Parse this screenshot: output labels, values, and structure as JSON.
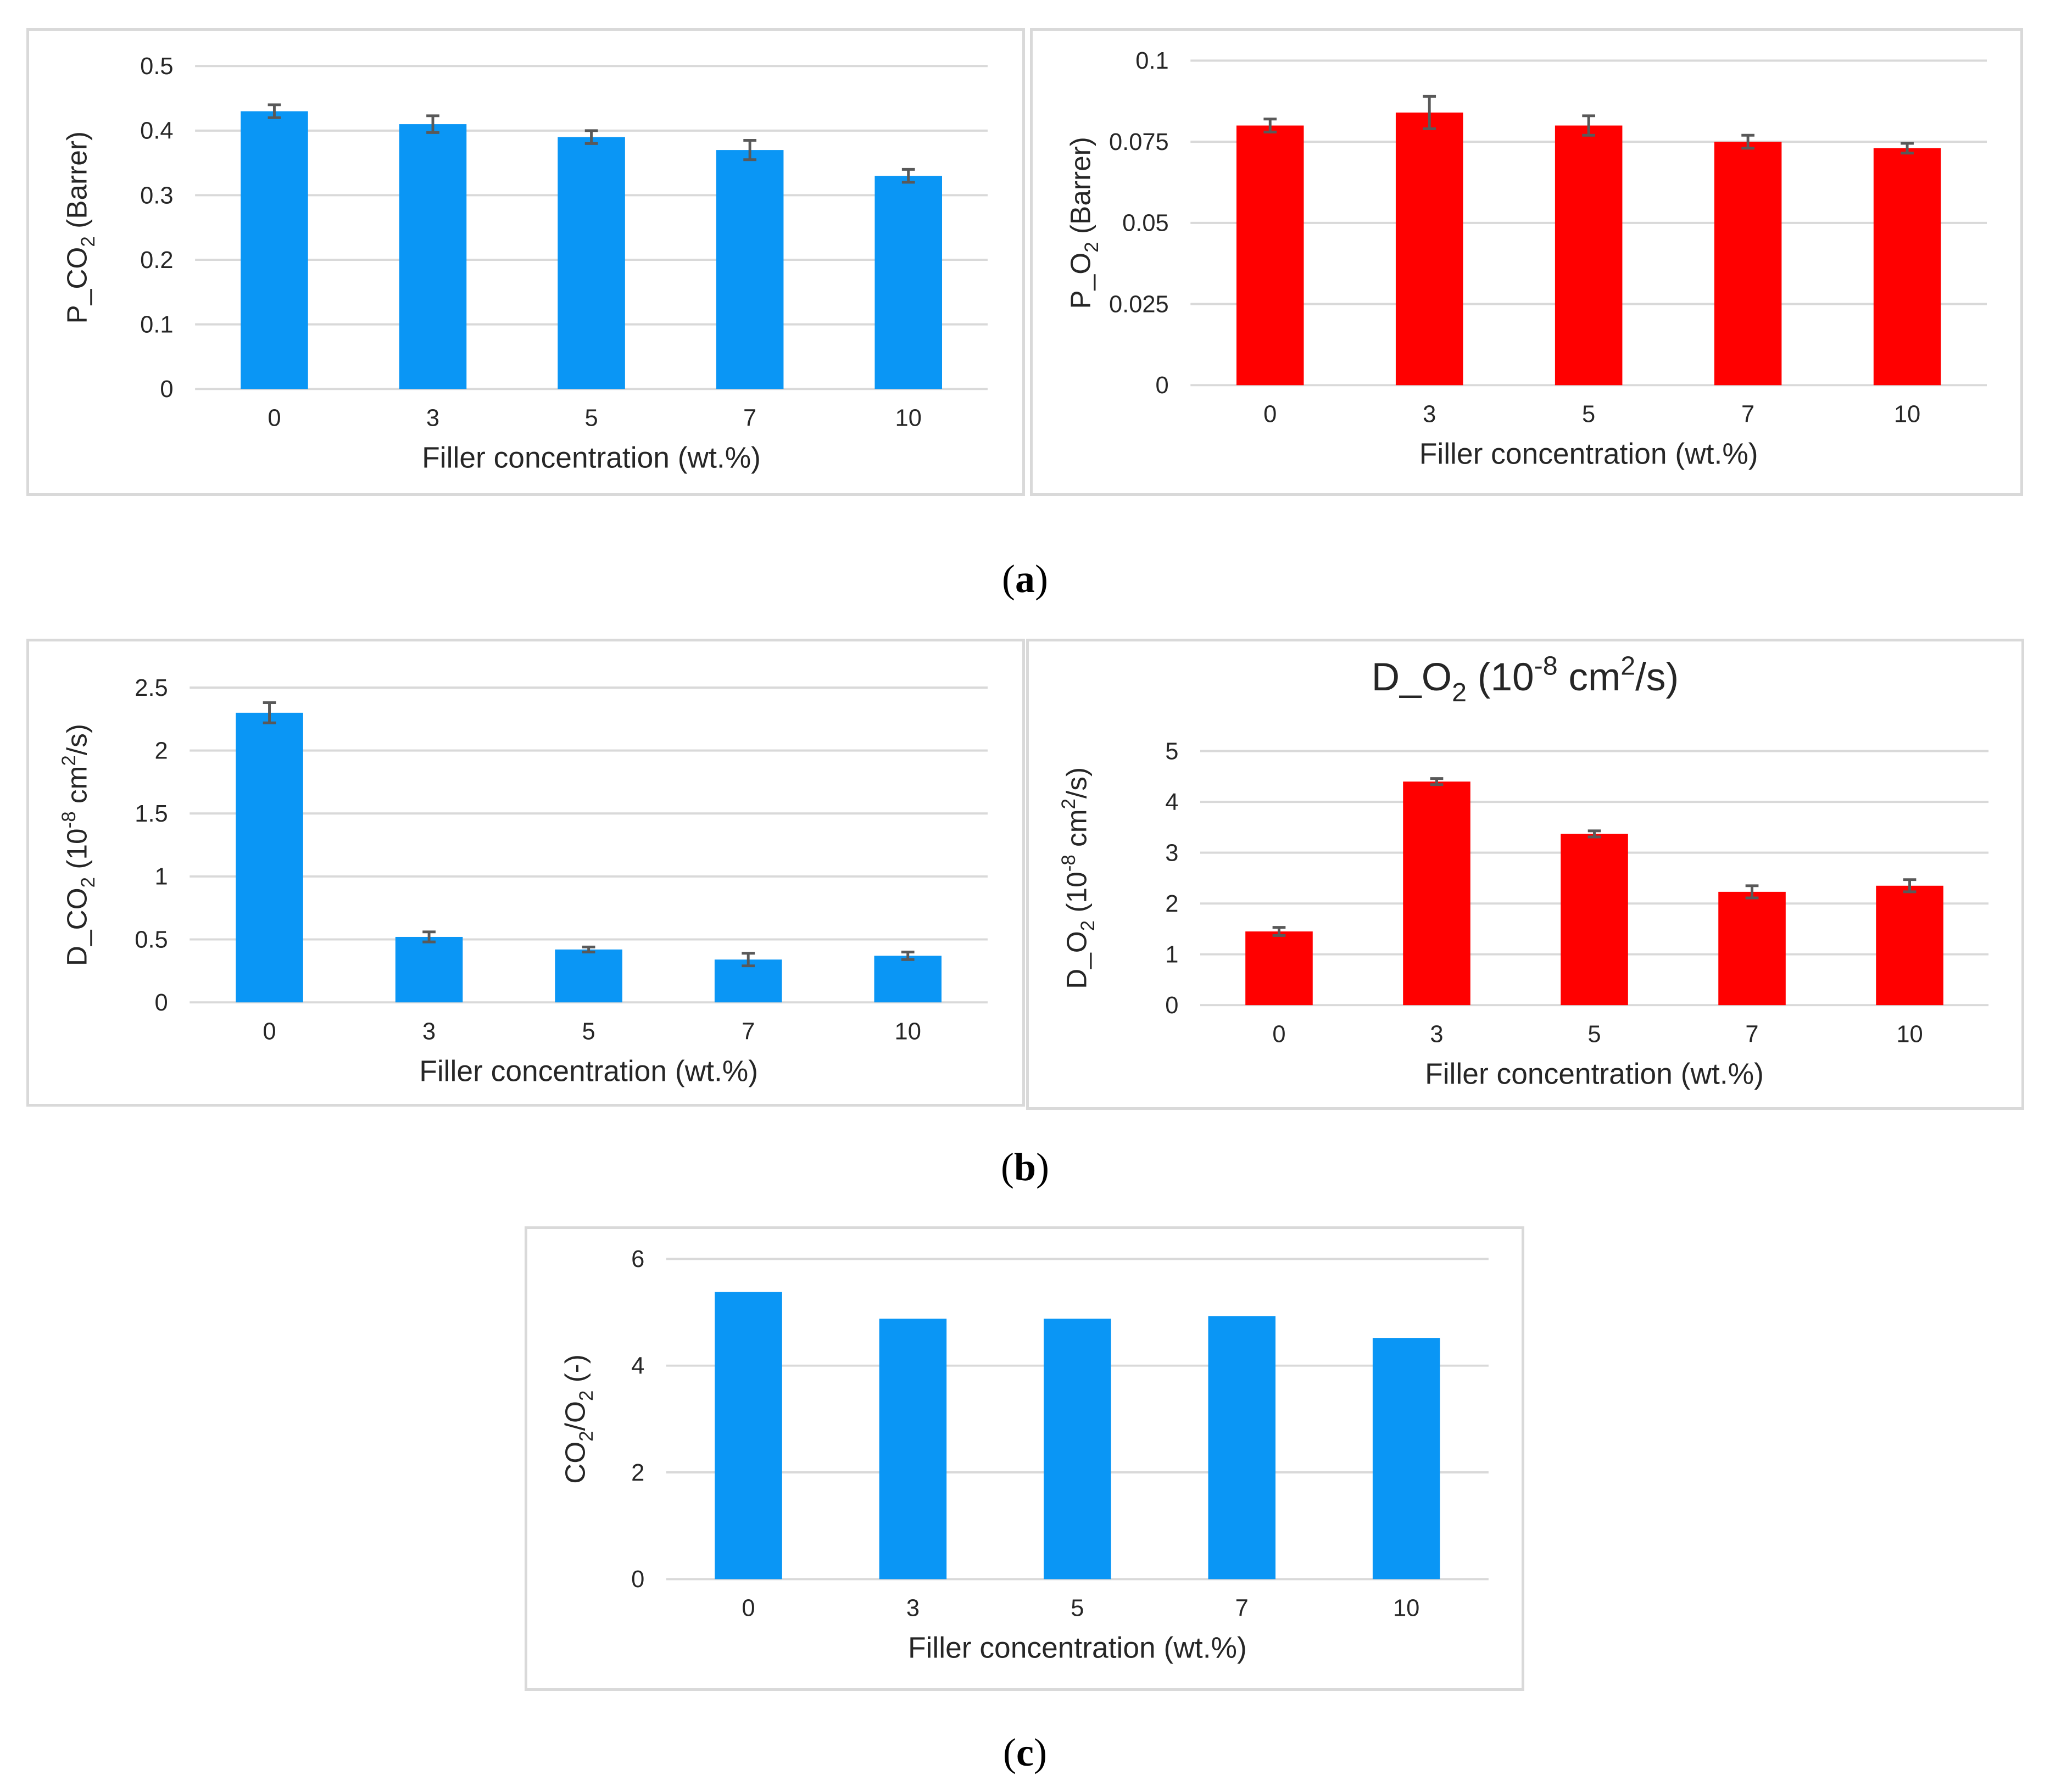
{
  "panel_labels": {
    "a": "a",
    "b": "b",
    "c": "c"
  },
  "colors": {
    "blue": "#0a96f5",
    "red": "#ff0000",
    "grid": "#d9d9d9",
    "error": "#595959"
  },
  "chart_data": [
    {
      "id": "p-co2",
      "type": "bar",
      "title": "",
      "categories": [
        "0",
        "3",
        "5",
        "7",
        "10"
      ],
      "values": [
        0.43,
        0.41,
        0.39,
        0.37,
        0.33
      ],
      "errors": [
        0.01,
        0.013,
        0.01,
        0.015,
        0.01
      ],
      "yticks": [
        0,
        0.1,
        0.2,
        0.3,
        0.4,
        0.5
      ],
      "ytick_labels": [
        "0",
        "0.1",
        "0.2",
        "0.3",
        "0.4",
        "0.5"
      ],
      "ylim": [
        0,
        0.5
      ],
      "ylabel": {
        "pre": "P_CO",
        "sub": "2",
        "sup": "",
        "post": " (Barrer)"
      },
      "xlabel": "Filler concentration (wt.%)",
      "color": "#0a96f5"
    },
    {
      "id": "p-o2",
      "type": "bar",
      "title": "",
      "categories": [
        "0",
        "3",
        "5",
        "7",
        "10"
      ],
      "values": [
        0.08,
        0.084,
        0.08,
        0.075,
        0.073
      ],
      "errors": [
        0.002,
        0.005,
        0.003,
        0.002,
        0.0015
      ],
      "yticks": [
        0,
        0.025,
        0.05,
        0.075,
        0.1
      ],
      "ytick_labels": [
        "0",
        "0.025",
        "0.05",
        "0.075",
        "0.1"
      ],
      "ylim": [
        0,
        0.1
      ],
      "ylabel": {
        "pre": "P_O",
        "sub": "2",
        "sup": "",
        "post": " (Barrer)"
      },
      "xlabel": "Filler concentration (wt.%)",
      "color": "#ff0000"
    },
    {
      "id": "d-co2",
      "type": "bar",
      "title": "",
      "categories": [
        "0",
        "3",
        "5",
        "7",
        "10"
      ],
      "values": [
        2.3,
        0.52,
        0.42,
        0.34,
        0.37
      ],
      "errors": [
        0.08,
        0.04,
        0.02,
        0.05,
        0.03
      ],
      "yticks": [
        0,
        0.5,
        1,
        1.5,
        2,
        2.5
      ],
      "ytick_labels": [
        "0",
        "0.5",
        "1",
        "1.5",
        "2",
        "2.5"
      ],
      "ylim": [
        0,
        2.5
      ],
      "ylabel": {
        "pre": "D_CO",
        "sub": "2",
        "mid": " (10",
        "sup": "-8",
        "mid2": " cm",
        "sup2": "2",
        "post": "/s)"
      },
      "xlabel": "Filler concentration (wt.%)",
      "color": "#0a96f5"
    },
    {
      "id": "d-o2",
      "type": "bar",
      "title": {
        "pre": "D_O",
        "sub": "2",
        "mid": " (10",
        "sup": "-8",
        "mid2": " cm",
        "sup2": "2",
        "post": "/s)"
      },
      "categories": [
        "0",
        "3",
        "5",
        "7",
        "10"
      ],
      "values": [
        1.45,
        4.4,
        3.37,
        2.23,
        2.35
      ],
      "errors": [
        0.08,
        0.06,
        0.06,
        0.12,
        0.12
      ],
      "yticks": [
        0,
        1,
        2,
        3,
        4,
        5
      ],
      "ytick_labels": [
        "0",
        "1",
        "2",
        "3",
        "4",
        "5"
      ],
      "ylim": [
        0,
        5
      ],
      "ylabel": {
        "pre": "D_O",
        "sub": "2",
        "mid": " (10",
        "sup": "-8",
        "mid2": " cm",
        "sup2": "2",
        "post": "/s)"
      },
      "xlabel": "Filler concentration (wt.%)",
      "color": "#ff0000"
    },
    {
      "id": "sel",
      "type": "bar",
      "title": "",
      "categories": [
        "0",
        "3",
        "5",
        "7",
        "10"
      ],
      "values": [
        5.38,
        4.88,
        4.88,
        4.93,
        4.52
      ],
      "errors": [
        0,
        0,
        0,
        0,
        0
      ],
      "yticks": [
        0,
        2,
        4,
        6
      ],
      "ytick_labels": [
        "0",
        "2",
        "4",
        "6"
      ],
      "ylim": [
        0,
        6
      ],
      "ylabel": {
        "pre": "CO",
        "sub": "2",
        "mid": "/O",
        "sub2": "2",
        "post": " (-)"
      },
      "xlabel": "Filler concentration (wt.%)",
      "color": "#0a96f5"
    }
  ]
}
